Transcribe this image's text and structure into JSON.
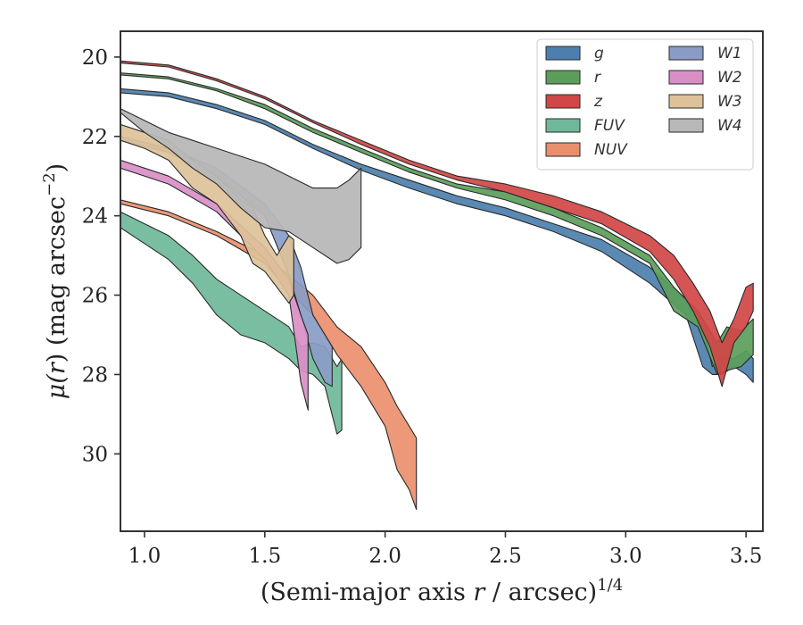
{
  "chart_data": {
    "type": "area",
    "title": "",
    "xlabel": "(Semi-major axis r / arcsec)",
    "xlabel_parts": {
      "pre": "(Semi-major axis ",
      "var": "r",
      "post": " / arcsec)",
      "sup": "1/4"
    },
    "ylabel": "μ(r) (mag arcsec⁻²)",
    "ylabel_parts": {
      "mu": "μ(",
      "var": "r",
      "post": ") (mag arcsec",
      "sup": "−2",
      "close": ")"
    },
    "xlim": [
      0.9,
      3.57
    ],
    "ylim": [
      31.95,
      19.35
    ],
    "y_inverted": true,
    "xticks": [
      1.0,
      1.5,
      2.0,
      2.5,
      3.0,
      3.5
    ],
    "xtick_labels": [
      "1.0",
      "1.5",
      "2.0",
      "2.5",
      "3.0",
      "3.5"
    ],
    "yticks": [
      20,
      22,
      24,
      26,
      28,
      30
    ],
    "ytick_labels": [
      "20",
      "22",
      "24",
      "26",
      "28",
      "30"
    ],
    "grid": false,
    "legend": {
      "placement": "top-right",
      "columns": 2
    },
    "series": [
      {
        "name": "g",
        "color": "#4c7fae",
        "x": [
          0.9,
          1.1,
          1.3,
          1.5,
          1.7,
          1.9,
          2.1,
          2.3,
          2.5,
          2.7,
          2.9,
          3.1,
          3.25,
          3.32,
          3.36,
          3.4,
          3.45,
          3.5,
          3.53
        ],
        "lo": [
          20.8,
          20.9,
          21.2,
          21.6,
          22.2,
          22.7,
          23.1,
          23.5,
          23.8,
          24.2,
          24.6,
          25.3,
          26.1,
          26.8,
          27.8,
          27.5,
          27.6,
          27.4,
          27.6
        ],
        "hi": [
          20.9,
          21.0,
          21.3,
          21.7,
          22.3,
          22.85,
          23.3,
          23.7,
          24.0,
          24.4,
          24.9,
          25.7,
          26.5,
          27.8,
          28.0,
          28.0,
          27.8,
          28.0,
          28.2
        ]
      },
      {
        "name": "r",
        "color": "#5b9e5b",
        "x": [
          0.9,
          1.1,
          1.3,
          1.5,
          1.7,
          1.9,
          2.1,
          2.3,
          2.5,
          2.7,
          2.9,
          3.1,
          3.2,
          3.3,
          3.38,
          3.42,
          3.48,
          3.53
        ],
        "lo": [
          20.4,
          20.5,
          20.8,
          21.2,
          21.8,
          22.3,
          22.8,
          23.2,
          23.4,
          23.8,
          24.3,
          25.0,
          25.8,
          26.4,
          27.2,
          26.8,
          26.9,
          26.6
        ],
        "hi": [
          20.45,
          20.55,
          20.85,
          21.3,
          21.9,
          22.4,
          22.9,
          23.3,
          23.6,
          24.0,
          24.5,
          25.2,
          26.4,
          26.8,
          28.0,
          27.9,
          27.8,
          27.5
        ]
      },
      {
        "name": "z",
        "color": "#d14646",
        "x": [
          0.9,
          1.1,
          1.3,
          1.5,
          1.7,
          1.9,
          2.1,
          2.3,
          2.5,
          2.7,
          2.9,
          3.1,
          3.2,
          3.28,
          3.35,
          3.4,
          3.45,
          3.5,
          3.53
        ],
        "lo": [
          20.1,
          20.2,
          20.55,
          21.0,
          21.6,
          22.1,
          22.6,
          23.0,
          23.2,
          23.5,
          23.9,
          24.5,
          25.0,
          25.7,
          26.4,
          27.2,
          26.6,
          25.8,
          25.7
        ],
        "hi": [
          20.15,
          20.25,
          20.6,
          21.05,
          21.65,
          22.2,
          22.7,
          23.1,
          23.4,
          23.8,
          24.2,
          24.9,
          25.6,
          26.4,
          27.3,
          28.3,
          27.2,
          26.8,
          26.4
        ]
      },
      {
        "name": "FUV",
        "color": "#6fb89a",
        "x": [
          0.9,
          1.0,
          1.1,
          1.2,
          1.3,
          1.4,
          1.5,
          1.6,
          1.65,
          1.7,
          1.75,
          1.8,
          1.82
        ],
        "lo": [
          23.9,
          24.2,
          24.5,
          25.0,
          25.6,
          26.0,
          26.4,
          26.8,
          27.3,
          27.2,
          27.3,
          27.8,
          27.6
        ],
        "hi": [
          24.3,
          24.7,
          25.1,
          25.7,
          26.5,
          27.0,
          27.2,
          27.6,
          27.9,
          28.0,
          28.3,
          29.5,
          29.4
        ]
      },
      {
        "name": "NUV",
        "color": "#ea8f6e",
        "x": [
          0.9,
          1.1,
          1.3,
          1.5,
          1.6,
          1.7,
          1.8,
          1.9,
          2.0,
          2.05,
          2.1,
          2.13
        ],
        "lo": [
          23.6,
          23.9,
          24.4,
          25.0,
          25.5,
          26.0,
          26.8,
          27.3,
          28.2,
          28.8,
          29.3,
          29.6
        ],
        "hi": [
          23.7,
          24.0,
          24.5,
          25.2,
          25.9,
          26.5,
          27.5,
          28.3,
          29.3,
          30.4,
          30.9,
          31.4
        ]
      },
      {
        "name": "W1",
        "color": "#8a9cc6",
        "x": [
          0.9,
          1.1,
          1.3,
          1.5,
          1.6,
          1.65,
          1.7,
          1.75,
          1.78
        ],
        "lo": [
          22.0,
          22.3,
          22.8,
          23.7,
          24.5,
          25.3,
          26.5,
          27.0,
          27.3
        ],
        "hi": [
          22.1,
          22.4,
          23.0,
          24.0,
          25.5,
          26.5,
          27.6,
          28.2,
          28.3
        ]
      },
      {
        "name": "W2",
        "color": "#d98fc5",
        "x": [
          0.9,
          1.1,
          1.3,
          1.5,
          1.6,
          1.65,
          1.68
        ],
        "lo": [
          22.6,
          23.0,
          23.7,
          24.8,
          25.6,
          26.5,
          27.0
        ],
        "hi": [
          22.8,
          23.2,
          23.9,
          25.1,
          26.0,
          28.2,
          28.9
        ]
      },
      {
        "name": "W3",
        "color": "#ddc199",
        "x": [
          0.9,
          1.0,
          1.1,
          1.2,
          1.3,
          1.4,
          1.45,
          1.5,
          1.55,
          1.6,
          1.62
        ],
        "lo": [
          21.7,
          21.9,
          22.1,
          22.6,
          23.0,
          23.6,
          23.8,
          24.5,
          25.0,
          24.5,
          24.6
        ],
        "hi": [
          22.1,
          22.3,
          22.6,
          23.3,
          23.7,
          24.5,
          25.2,
          25.4,
          25.8,
          26.2,
          26.0
        ]
      },
      {
        "name": "W4",
        "color": "#b8b8b8",
        "x": [
          0.9,
          1.0,
          1.1,
          1.2,
          1.3,
          1.4,
          1.5,
          1.6,
          1.7,
          1.8,
          1.85,
          1.9
        ],
        "lo": [
          21.3,
          21.6,
          21.9,
          22.1,
          22.3,
          22.5,
          22.7,
          23.0,
          23.3,
          23.3,
          23.1,
          22.8
        ],
        "hi": [
          21.4,
          21.9,
          22.3,
          22.8,
          23.2,
          23.8,
          24.3,
          24.4,
          24.8,
          25.2,
          25.1,
          24.8
        ]
      }
    ]
  }
}
